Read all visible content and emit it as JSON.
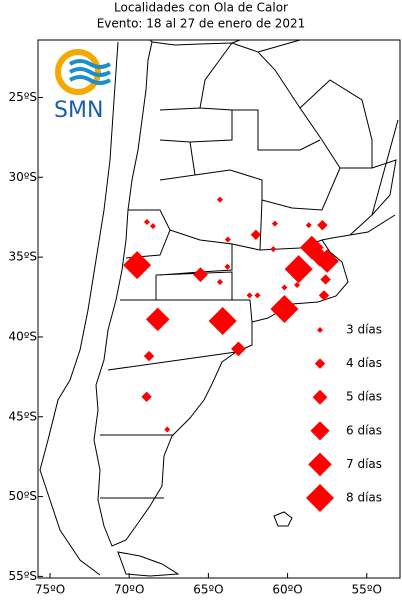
{
  "chart_data": {
    "type": "map",
    "title": "Localidades con Ola de Calor",
    "subtitle": "Evento: 18 al 27 de enero de 2021",
    "logo_text": "SMN",
    "xlim": [
      -75.76,
      -52.9
    ],
    "ylim": [
      -55.1,
      -21.4
    ],
    "xticks": [
      {
        "value": -75,
        "label": "75ºO"
      },
      {
        "value": -70,
        "label": "70ºO"
      },
      {
        "value": -65,
        "label": "65ºO"
      },
      {
        "value": -60,
        "label": "60ºO"
      },
      {
        "value": -55,
        "label": "55ºO"
      }
    ],
    "yticks": [
      {
        "value": -25,
        "label": "25ºS"
      },
      {
        "value": -30,
        "label": "30ºS"
      },
      {
        "value": -35,
        "label": "35ºS"
      },
      {
        "value": -40,
        "label": "40ºS"
      },
      {
        "value": -45,
        "label": "45ºS"
      },
      {
        "value": -50,
        "label": "50ºS"
      },
      {
        "value": -55,
        "label": "55ºS"
      }
    ],
    "color": "#ff0000",
    "lon": [
      -68.88,
      -68.5,
      -64.27,
      -60.8,
      -58.66,
      -63.77,
      -62.0,
      -60.9,
      -57.8,
      -58.47,
      -57.96,
      -57.5,
      -59.3,
      -57.6,
      -59.4,
      -69.5,
      -65.5,
      -63.8,
      -64.27,
      -60.2,
      -57.7,
      -62.4,
      -61.9,
      -60.2,
      -68.2,
      -64.1,
      -63.1,
      -68.75,
      -68.9,
      -67.6
    ],
    "lat": [
      -32.8,
      -33.06,
      -31.4,
      -32.9,
      -33.0,
      -33.9,
      -33.6,
      -34.5,
      -33.0,
      -34.4,
      -35.0,
      -35.25,
      -35.75,
      -36.4,
      -36.75,
      -35.5,
      -36.1,
      -35.6,
      -36.56,
      -36.9,
      -37.4,
      -37.4,
      -37.4,
      -38.25,
      -38.9,
      -39.0,
      -40.75,
      -41.2,
      -43.75,
      -45.8
    ],
    "days": [
      3,
      3,
      3,
      3,
      3,
      3,
      4,
      3,
      4,
      7,
      6,
      7,
      8,
      4,
      3,
      8,
      5,
      3,
      3,
      3,
      4,
      3,
      3,
      8,
      7,
      8,
      5,
      4,
      4,
      3
    ],
    "legend": {
      "values": [
        3,
        4,
        5,
        6,
        7,
        8
      ],
      "value_labels": [
        "3 días",
        "4 días",
        "5 días",
        "6 días",
        "7 días",
        "8 días"
      ]
    }
  }
}
